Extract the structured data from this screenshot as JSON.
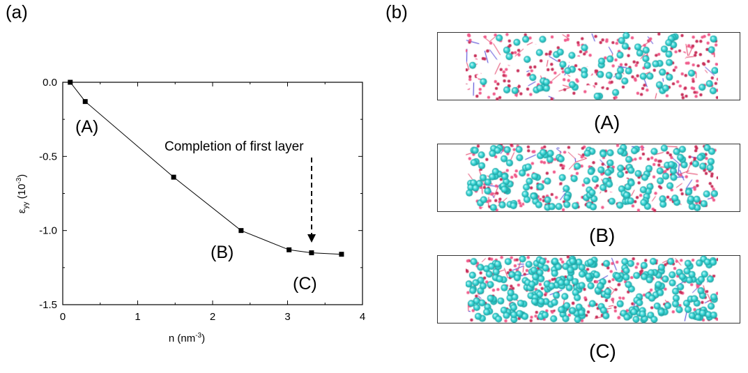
{
  "panels": {
    "a_label": "(a)",
    "b_label": "(b)"
  },
  "chart_data": {
    "type": "line",
    "x": [
      0.1,
      0.3,
      1.48,
      2.38,
      3.02,
      3.32,
      3.72
    ],
    "y": [
      0.0,
      -0.13,
      -0.64,
      -1.0,
      -1.13,
      -1.15,
      -1.16
    ],
    "xlim": [
      0,
      4
    ],
    "ylim": [
      -1.5,
      0.0
    ],
    "xticks": [
      "0",
      "1",
      "2",
      "3",
      "4"
    ],
    "yticks": [
      "0.0",
      "-0.5",
      "-1.0",
      "-1.5"
    ],
    "xlabel_main": "n (nm",
    "xlabel_sup": "-3",
    "xlabel_end": ")",
    "ylabel_main": "ε",
    "ylabel_sub": "yy",
    "ylabel_unit": " (10",
    "ylabel_sup": "-3",
    "ylabel_end": ")",
    "grid": false,
    "annotations": {
      "A": "(A)",
      "B": "(B)",
      "C": "(C)",
      "note": "Completion of first layer"
    }
  },
  "structures": [
    {
      "label": "(A)",
      "coverage": 0.25
    },
    {
      "label": "(B)",
      "coverage": 0.6
    },
    {
      "label": "(C)",
      "coverage": 0.95
    }
  ],
  "colors": {
    "atom": "#38d6d6",
    "atom_edge": "#1a9a9a",
    "bond_red": "#e0305a",
    "bond_blue": "#3a2fd0"
  }
}
